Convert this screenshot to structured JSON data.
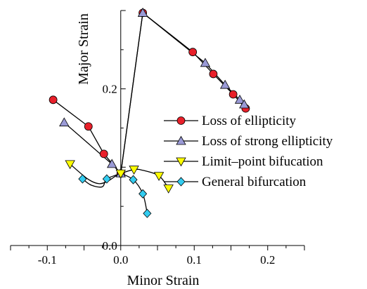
{
  "chart_data": {
    "type": "line",
    "title": "",
    "xlabel": "Minor Strain",
    "ylabel": "Major Strain",
    "xlim": [
      -0.15,
      0.25
    ],
    "ylim": [
      0.0,
      0.3
    ],
    "xticks": [
      {
        "value": -0.1,
        "label": "-0.1"
      },
      {
        "value": 0.0,
        "label": "0.0"
      },
      {
        "value": 0.1,
        "label": "0.1"
      },
      {
        "value": 0.2,
        "label": "0.2"
      }
    ],
    "yticks": [
      {
        "value": 0.0,
        "label": "0.0"
      },
      {
        "value": 0.2,
        "label": "0.2"
      }
    ],
    "grid": false,
    "legend_position": "right",
    "series": [
      {
        "name": "Loss of ellipticity",
        "marker": "circle",
        "color": "#e8202a",
        "branches": [
          [
            {
              "x": -0.092,
              "y": 0.186
            },
            {
              "x": -0.044,
              "y": 0.152
            },
            {
              "x": -0.023,
              "y": 0.117
            },
            {
              "x": 0.0,
              "y": 0.092
            }
          ],
          [
            {
              "x": 0.0,
              "y": 0.092
            },
            {
              "x": 0.03,
              "y": 0.297
            },
            {
              "x": 0.098,
              "y": 0.247
            },
            {
              "x": 0.126,
              "y": 0.219
            },
            {
              "x": 0.153,
              "y": 0.193
            },
            {
              "x": 0.17,
              "y": 0.175
            }
          ]
        ]
      },
      {
        "name": "Loss of strong ellipticity",
        "marker": "triangle-up",
        "color": "#9a9ad6",
        "branches": [
          [
            {
              "x": -0.077,
              "y": 0.157
            },
            {
              "x": -0.012,
              "y": 0.104
            },
            {
              "x": 0.0,
              "y": 0.092
            }
          ],
          [
            {
              "x": 0.0,
              "y": 0.092
            },
            {
              "x": 0.03,
              "y": 0.297
            },
            {
              "x": 0.115,
              "y": 0.233
            },
            {
              "x": 0.142,
              "y": 0.205
            },
            {
              "x": 0.162,
              "y": 0.186
            },
            {
              "x": 0.168,
              "y": 0.18
            }
          ]
        ]
      },
      {
        "name": "Limit–point bifucation",
        "marker": "triangle-down",
        "color": "#ffff00",
        "branches": [
          [
            {
              "x": -0.069,
              "y": 0.104
            },
            {
              "x": -0.045,
              "y": 0.085
            },
            {
              "x": -0.03,
              "y": 0.079
            },
            {
              "x": -0.018,
              "y": 0.082
            },
            {
              "x": -0.008,
              "y": 0.088
            },
            {
              "x": 0.0,
              "y": 0.092
            }
          ],
          [
            {
              "x": 0.0,
              "y": 0.092
            },
            {
              "x": 0.018,
              "y": 0.097
            },
            {
              "x": 0.03,
              "y": 0.096
            },
            {
              "x": 0.052,
              "y": 0.089
            },
            {
              "x": 0.065,
              "y": 0.073
            }
          ]
        ]
      },
      {
        "name": "General bifurcation",
        "marker": "diamond",
        "color": "#33ccf0",
        "branches": [
          [
            {
              "x": -0.052,
              "y": 0.085
            },
            {
              "x": -0.04,
              "y": 0.077
            },
            {
              "x": -0.025,
              "y": 0.075
            },
            {
              "x": -0.019,
              "y": 0.085
            },
            {
              "x": 0.0,
              "y": 0.092
            }
          ],
          [
            {
              "x": 0.0,
              "y": 0.092
            },
            {
              "x": 0.017,
              "y": 0.084
            },
            {
              "x": 0.03,
              "y": 0.066
            },
            {
              "x": 0.036,
              "y": 0.041
            }
          ]
        ]
      }
    ]
  }
}
